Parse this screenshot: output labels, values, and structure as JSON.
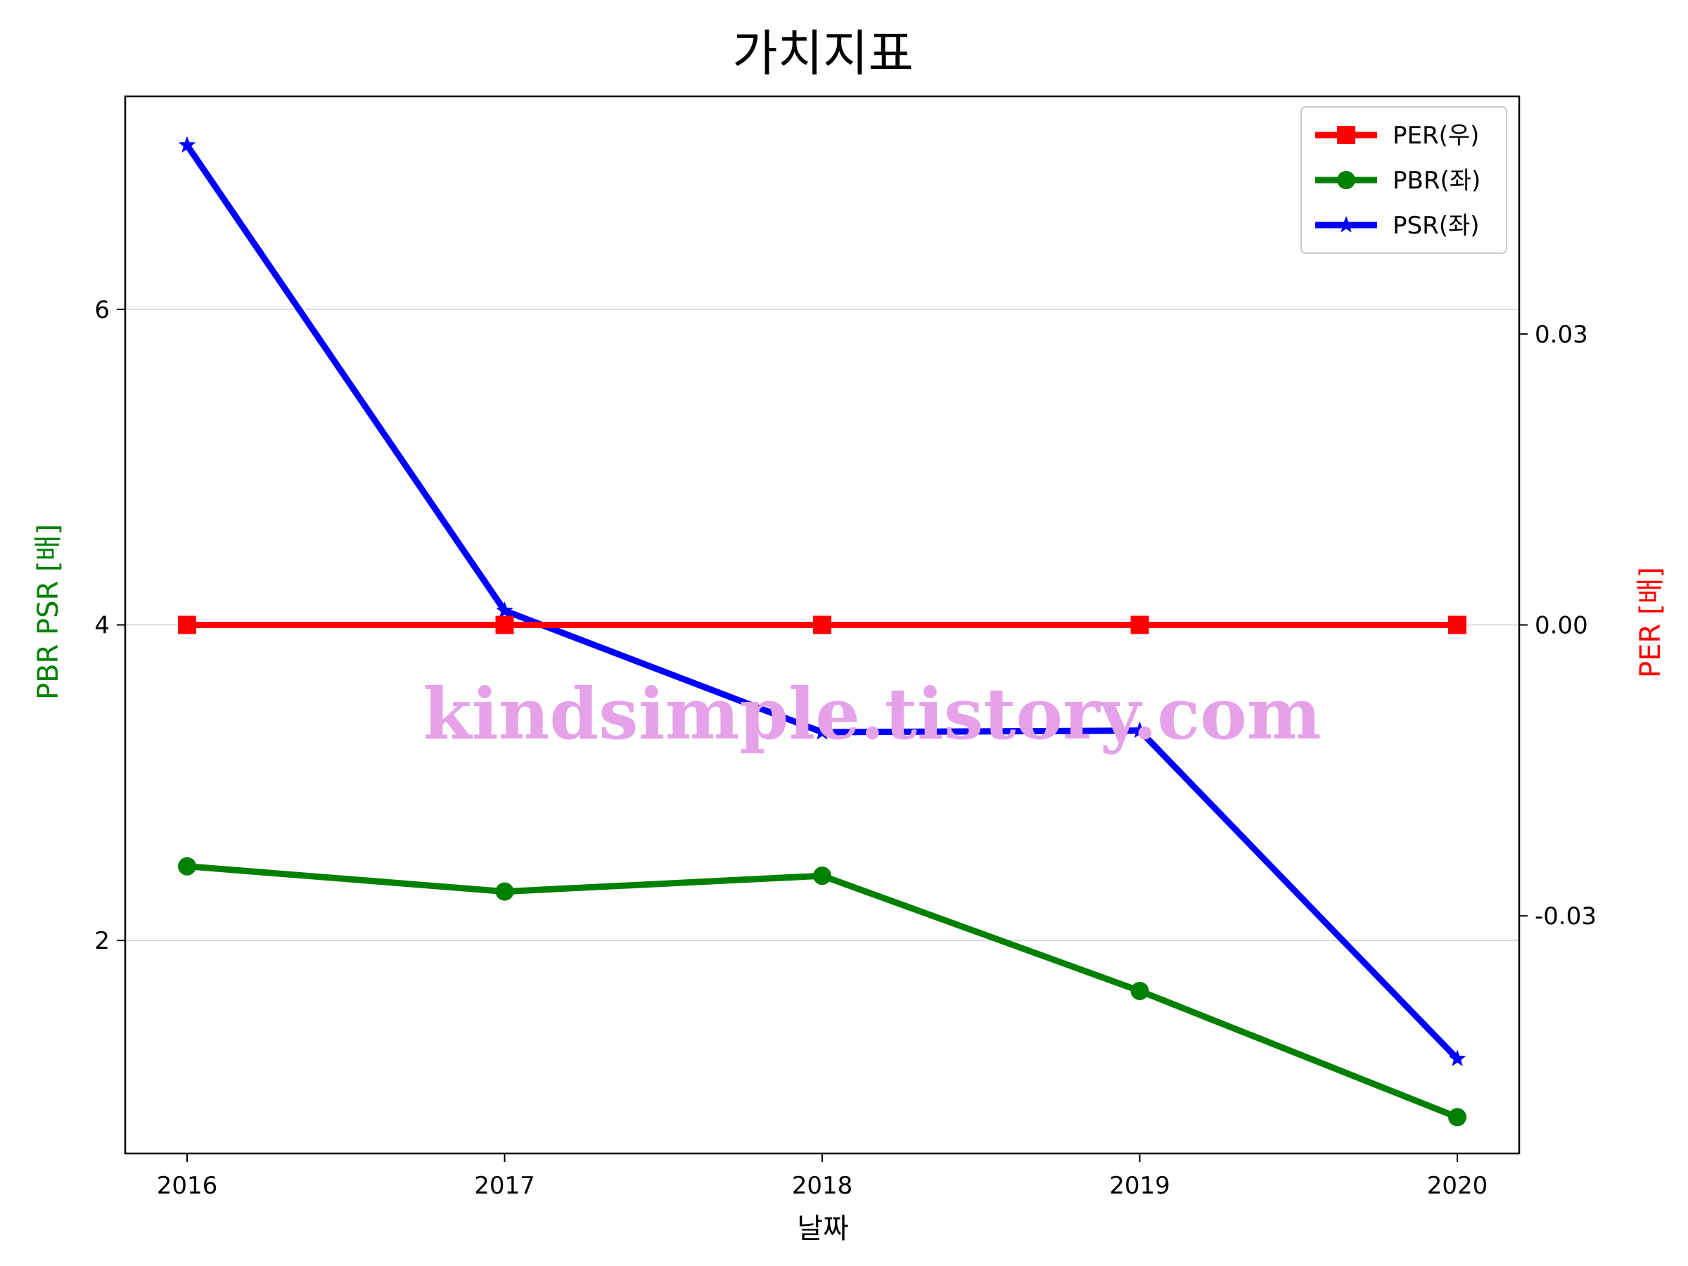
{
  "chart_data": {
    "type": "line",
    "title": "가치지표",
    "xlabel": "날짜",
    "ylabel_left": "PBR PSR [배]",
    "ylabel_right": "PER [배]",
    "categories": [
      "2016",
      "2017",
      "2018",
      "2019",
      "2020"
    ],
    "left_axis": {
      "ylim": [
        0.65,
        7.35
      ],
      "ticks": [
        2,
        4,
        6
      ],
      "tick_labels": [
        "2",
        "4",
        "6"
      ],
      "gridlines": true
    },
    "right_axis": {
      "ylim": [
        -0.0545,
        0.0545
      ],
      "ticks": [
        -0.03,
        0.0,
        0.03
      ],
      "tick_labels": [
        "-0.03",
        "0.00",
        "0.03"
      ]
    },
    "series": [
      {
        "name": "PER(우)",
        "axis": "right",
        "marker": "square",
        "color": "#ff0000",
        "values": [
          0.0,
          0.0,
          0.0,
          0.0,
          0.0
        ]
      },
      {
        "name": "PBR(좌)",
        "axis": "left",
        "marker": "circle",
        "color": "#008000",
        "values": [
          2.47,
          2.31,
          2.41,
          1.68,
          0.88
        ]
      },
      {
        "name": "PSR(좌)",
        "axis": "left",
        "marker": "star",
        "color": "#0000ff",
        "values": [
          7.04,
          4.09,
          3.32,
          3.33,
          1.25
        ]
      }
    ],
    "legend": {
      "position": "top-right"
    },
    "watermark": {
      "text": "kindsimple.tistory.com",
      "color": "#e5a2e9"
    }
  }
}
